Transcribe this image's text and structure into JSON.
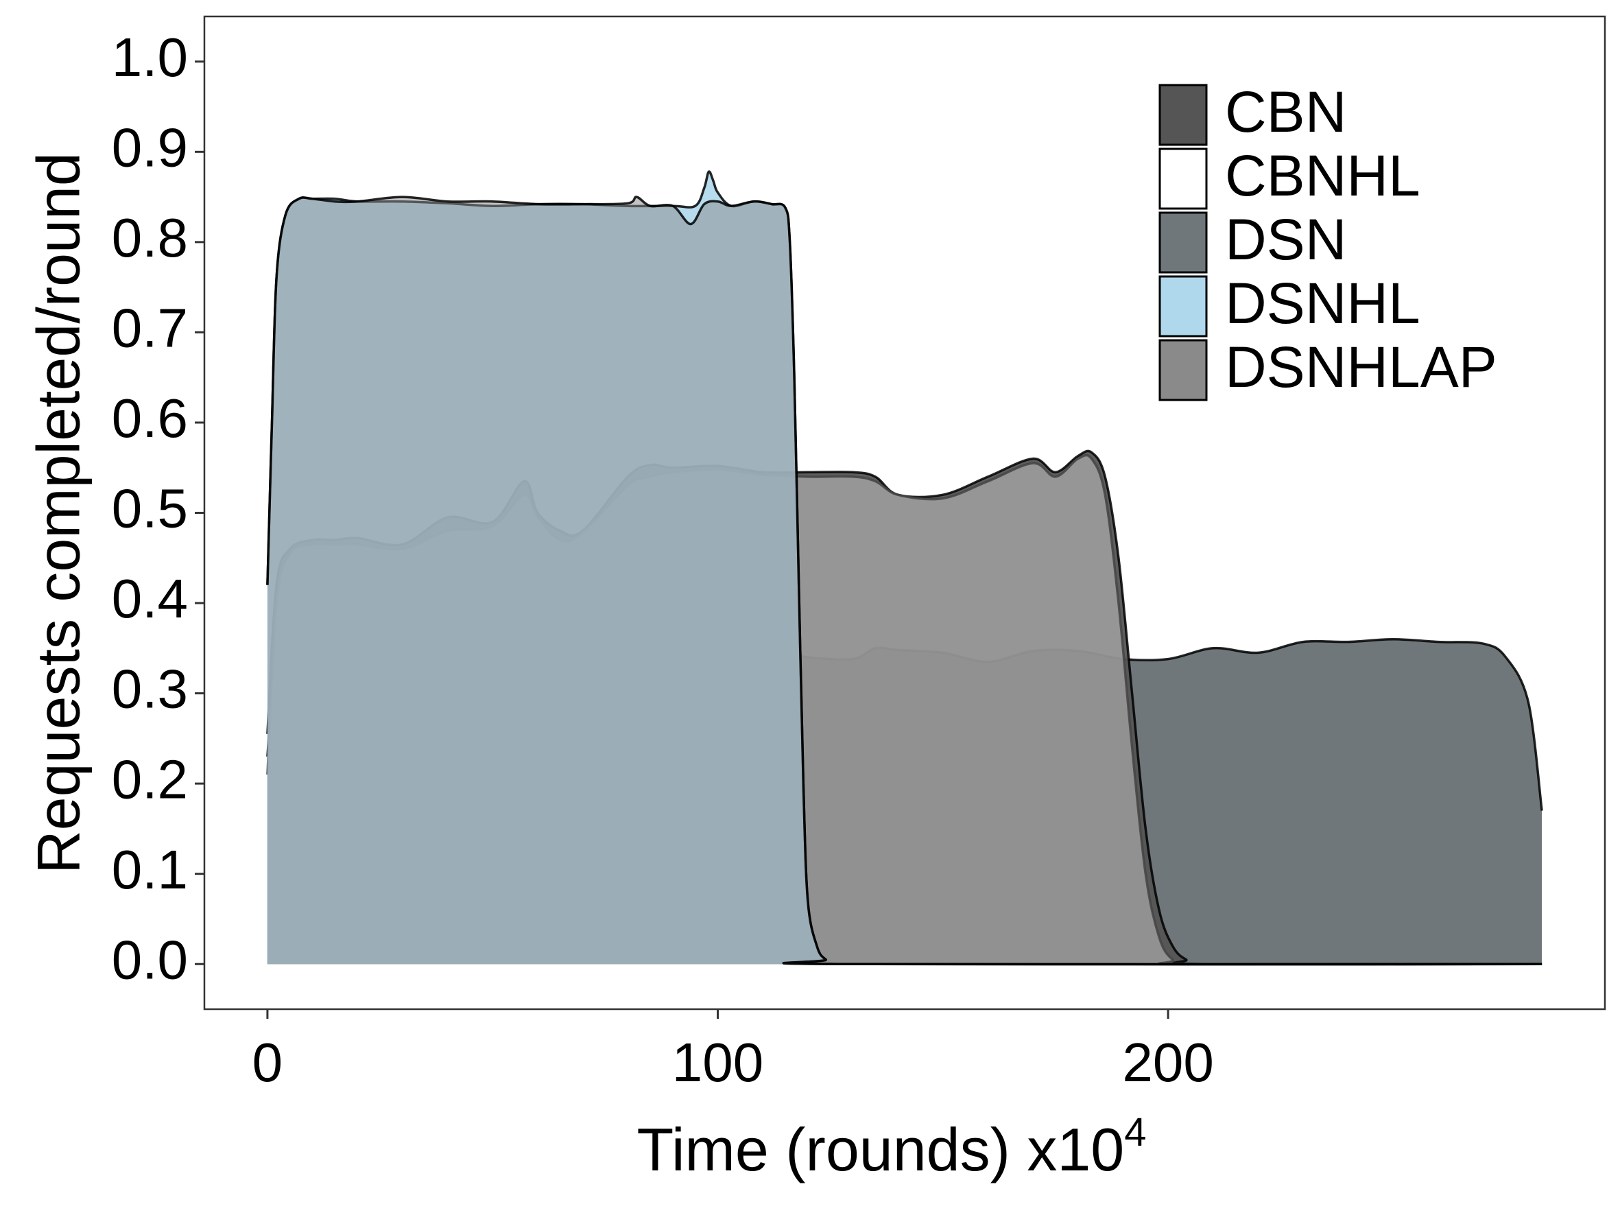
{
  "chart_data": {
    "type": "area",
    "xlabel": "Time (rounds) x10",
    "xlabel_sup": "4",
    "ylabel": "Requests completed/round",
    "xlim": [
      -14,
      297
    ],
    "ylim": [
      -0.05,
      1.05
    ],
    "x_ticks": [
      0,
      100,
      200
    ],
    "x_tick_labels": [
      "0",
      "100",
      "200"
    ],
    "y_ticks": [
      0.0,
      0.1,
      0.2,
      0.3,
      0.4,
      0.5,
      0.6,
      0.7,
      0.8,
      0.9,
      1.0
    ],
    "y_tick_labels": [
      "0.0",
      "0.1",
      "0.2",
      "0.3",
      "0.4",
      "0.5",
      "0.6",
      "0.7",
      "0.8",
      "0.9",
      "1.0"
    ],
    "grid": false,
    "legend_position": "top-right",
    "series": [
      {
        "name": "DSN",
        "color": "#6f777b",
        "opacity": 1,
        "stroke": "#000000",
        "x": [
          0,
          2,
          5,
          10,
          15,
          20,
          25,
          30,
          35,
          40,
          45,
          50,
          60,
          70,
          80,
          90,
          100,
          110,
          115,
          120,
          130,
          135,
          140,
          150,
          160,
          170,
          180,
          190,
          200,
          210,
          220,
          230,
          240,
          250,
          260,
          270,
          275,
          280,
          283
        ],
        "y": [
          0.23,
          0.36,
          0.41,
          0.435,
          0.44,
          0.44,
          0.435,
          0.42,
          0.38,
          0.345,
          0.335,
          0.335,
          0.328,
          0.335,
          0.335,
          0.332,
          0.33,
          0.34,
          0.345,
          0.34,
          0.338,
          0.35,
          0.348,
          0.345,
          0.335,
          0.347,
          0.347,
          0.338,
          0.338,
          0.35,
          0.345,
          0.357,
          0.357,
          0.36,
          0.357,
          0.355,
          0.34,
          0.29,
          0.17
        ]
      },
      {
        "name": "CBN",
        "color": "#555555",
        "opacity": 0.95,
        "stroke": "#000000",
        "x": [
          0,
          2,
          5,
          10,
          15,
          20,
          30,
          40,
          50,
          57,
          60,
          65,
          70,
          80,
          85,
          90,
          100,
          110,
          120,
          130,
          135,
          140,
          150,
          160,
          170,
          175,
          180,
          183,
          186,
          189,
          192,
          195,
          198,
          201,
          204,
          208,
          283
        ],
        "y": [
          0.255,
          0.42,
          0.46,
          0.47,
          0.47,
          0.472,
          0.465,
          0.495,
          0.49,
          0.535,
          0.5,
          0.48,
          0.48,
          0.54,
          0.553,
          0.55,
          0.552,
          0.545,
          0.545,
          0.545,
          0.54,
          0.52,
          0.52,
          0.54,
          0.56,
          0.545,
          0.563,
          0.567,
          0.54,
          0.45,
          0.3,
          0.15,
          0.06,
          0.02,
          0.005,
          0,
          0
        ]
      },
      {
        "name": "CBNHL",
        "color": "#ffffff",
        "opacity": 0.35,
        "stroke": "#444444",
        "x": [
          0,
          2,
          5,
          10,
          15,
          20,
          30,
          40,
          50,
          57,
          60,
          65,
          70,
          80,
          85,
          90,
          100,
          110,
          120,
          130,
          135,
          140,
          150,
          160,
          170,
          175,
          180,
          183,
          186,
          189,
          192,
          195,
          198,
          201,
          205,
          283
        ],
        "y": [
          0.21,
          0.4,
          0.455,
          0.465,
          0.465,
          0.465,
          0.46,
          0.48,
          0.485,
          0.52,
          0.495,
          0.47,
          0.478,
          0.53,
          0.54,
          0.545,
          0.548,
          0.542,
          0.54,
          0.54,
          0.535,
          0.52,
          0.516,
          0.535,
          0.555,
          0.54,
          0.56,
          0.56,
          0.52,
          0.4,
          0.24,
          0.1,
          0.03,
          0.005,
          0,
          0
        ]
      },
      {
        "name": "DSNHL",
        "color": "#afd8ec",
        "opacity": 0.9,
        "stroke": "#000000",
        "x": [
          0,
          1,
          2,
          4,
          7,
          10,
          15,
          20,
          30,
          40,
          50,
          60,
          70,
          80,
          90,
          95,
          97,
          98,
          99,
          100,
          103,
          108,
          112,
          115,
          116,
          117,
          118,
          119,
          120,
          122,
          124,
          127,
          283
        ],
        "y": [
          0.42,
          0.6,
          0.76,
          0.83,
          0.848,
          0.848,
          0.848,
          0.845,
          0.845,
          0.843,
          0.84,
          0.842,
          0.842,
          0.84,
          0.84,
          0.84,
          0.86,
          0.878,
          0.868,
          0.855,
          0.84,
          0.845,
          0.842,
          0.838,
          0.8,
          0.65,
          0.42,
          0.2,
          0.07,
          0.02,
          0.005,
          0,
          0
        ]
      },
      {
        "name": "DSNHLAP",
        "color": "#8a8a8a",
        "opacity": 0.5,
        "stroke": "#000000",
        "x": [
          0,
          1,
          2,
          4,
          7,
          10,
          15,
          20,
          30,
          40,
          50,
          60,
          70,
          80,
          82,
          85,
          90,
          94,
          97,
          100,
          103,
          108,
          112,
          115,
          116,
          117,
          118,
          119,
          120,
          122,
          124,
          127,
          283
        ],
        "y": [
          0.42,
          0.6,
          0.76,
          0.83,
          0.848,
          0.848,
          0.845,
          0.845,
          0.85,
          0.845,
          0.845,
          0.842,
          0.842,
          0.843,
          0.85,
          0.84,
          0.84,
          0.82,
          0.842,
          0.845,
          0.84,
          0.845,
          0.842,
          0.838,
          0.8,
          0.65,
          0.42,
          0.2,
          0.07,
          0.02,
          0.005,
          0,
          0
        ]
      }
    ],
    "legend_order": [
      "CBN",
      "CBNHL",
      "DSN",
      "DSNHL",
      "DSNHLAP"
    ]
  }
}
